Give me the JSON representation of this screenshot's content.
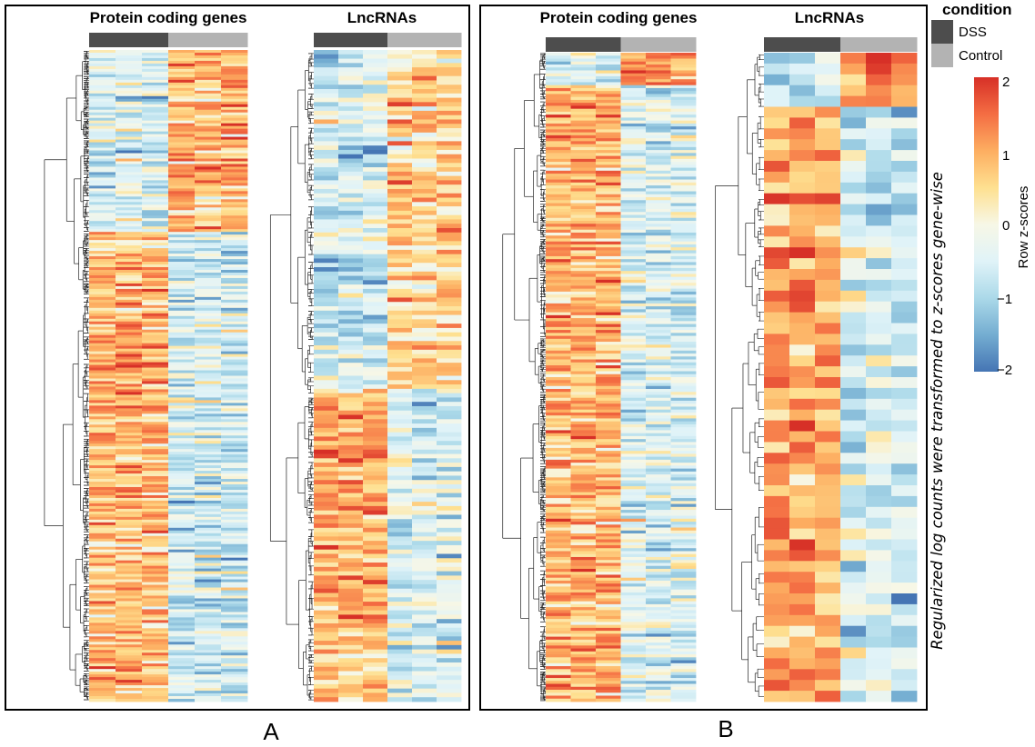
{
  "chart_data": [
    {
      "type": "heatmap",
      "panel_label": "A",
      "sub_heatmaps": [
        {
          "title": "Protein coding genes",
          "columns": 6,
          "column_conditions": [
            "DSS",
            "DSS",
            "DSS",
            "Control",
            "Control",
            "Control"
          ],
          "row_blocks": [
            {
              "rows_fraction": 0.28,
              "condition_means": {
                "DSS": -0.5,
                "Control": 0.9
              }
            },
            {
              "rows_fraction": 0.72,
              "condition_means": {
                "DSS": 0.8,
                "Control": -0.6
              }
            }
          ],
          "row_dendrogram": true
        },
        {
          "title": "LncRNAs",
          "columns": 6,
          "column_conditions": [
            "DSS",
            "DSS",
            "DSS",
            "Control",
            "Control",
            "Control"
          ],
          "row_blocks": [
            {
              "rows_fraction": 0.52,
              "condition_means": {
                "DSS": -0.6,
                "Control": 0.6
              }
            },
            {
              "rows_fraction": 0.48,
              "condition_means": {
                "DSS": 0.9,
                "Control": -0.5
              }
            }
          ],
          "row_dendrogram": true
        }
      ]
    },
    {
      "type": "heatmap",
      "panel_label": "B",
      "sub_heatmaps": [
        {
          "title": "Protein coding genes",
          "columns": 6,
          "column_conditions": [
            "DSS",
            "DSS",
            "DSS",
            "Control",
            "Control",
            "Control"
          ],
          "row_blocks": [
            {
              "rows_fraction": 0.05,
              "condition_means": {
                "DSS": -0.6,
                "Control": 1.0
              }
            },
            {
              "rows_fraction": 0.95,
              "condition_means": {
                "DSS": 0.9,
                "Control": -0.5
              }
            }
          ],
          "row_dendrogram": true
        },
        {
          "title": "LncRNAs",
          "columns": 6,
          "column_conditions": [
            "DSS",
            "DSS",
            "DSS",
            "Control",
            "Control",
            "Control"
          ],
          "row_blocks": [
            {
              "rows_fraction": 0.09,
              "condition_means": {
                "DSS": -0.7,
                "Control": 1.2
              }
            },
            {
              "rows_fraction": 0.91,
              "condition_means": {
                "DSS": 1.1,
                "Control": -0.6
              }
            }
          ],
          "row_dendrogram": true
        }
      ]
    }
  ],
  "legend": {
    "condition_title": "condition",
    "conditions": [
      {
        "name": "DSS",
        "color": "#4d4d4d"
      },
      {
        "name": "Control",
        "color": "#b3b3b3"
      }
    ],
    "colorbar_title": "Row z-scores",
    "colorbar_range": [
      -2,
      2
    ],
    "colorbar_ticks": [
      "2",
      "1",
      "0",
      "−1",
      "−2"
    ],
    "colorbar_colors": [
      "#d73027",
      "#f46d43",
      "#fdae61",
      "#fee090",
      "#f7f7e6",
      "#e0f3f8",
      "#abd9e9",
      "#74add1",
      "#4575b4"
    ]
  },
  "side_note": "Regularized log counts were transformed to z-scores gene-wise",
  "panel_labels": [
    "A",
    "B"
  ]
}
